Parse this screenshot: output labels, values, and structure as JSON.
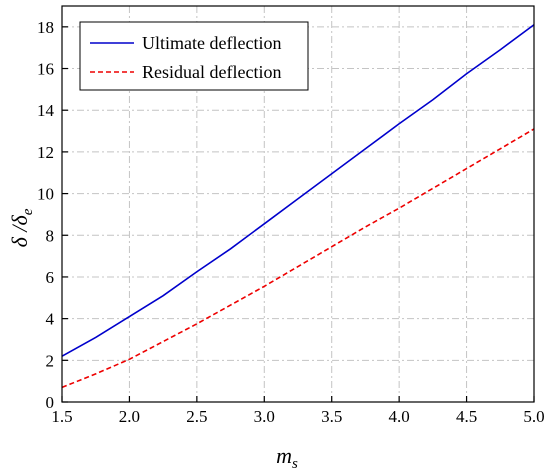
{
  "chart_data": {
    "type": "line",
    "xlabel": "m",
    "xlabel_sub": "s",
    "ylabel_main": "δ /δ",
    "ylabel_sub": "e",
    "xlim": [
      1.5,
      5.0
    ],
    "ylim": [
      0,
      19
    ],
    "x_ticks": [
      1.5,
      2.0,
      2.5,
      3.0,
      3.5,
      4.0,
      4.5,
      5.0
    ],
    "x_tick_labels": [
      "1.5",
      "2.0",
      "2.5",
      "3.0",
      "3.5",
      "4.0",
      "4.5",
      "5.0"
    ],
    "y_ticks": [
      0,
      2,
      4,
      6,
      8,
      10,
      12,
      14,
      16,
      18
    ],
    "y_tick_labels": [
      "0",
      "2",
      "4",
      "6",
      "8",
      "10",
      "12",
      "14",
      "16",
      "18"
    ],
    "grid": true,
    "legend_position": "top-left",
    "x": [
      1.5,
      1.75,
      2.0,
      2.25,
      2.5,
      2.75,
      3.0,
      3.25,
      3.5,
      3.75,
      4.0,
      4.25,
      4.5,
      4.75,
      5.0
    ],
    "series": [
      {
        "name": "Ultimate deflection",
        "color": "#0000cc",
        "dash": "solid",
        "values": [
          2.2,
          3.1,
          4.1,
          5.1,
          6.25,
          7.35,
          8.55,
          9.75,
          10.95,
          12.15,
          13.35,
          14.5,
          15.75,
          16.9,
          18.1
        ]
      },
      {
        "name": "Residual deflection",
        "color": "#ee0000",
        "dash": "dashed",
        "values": [
          0.7,
          1.35,
          2.05,
          2.9,
          3.75,
          4.65,
          5.55,
          6.5,
          7.45,
          8.4,
          9.3,
          10.25,
          11.2,
          12.15,
          13.1
        ]
      }
    ]
  }
}
